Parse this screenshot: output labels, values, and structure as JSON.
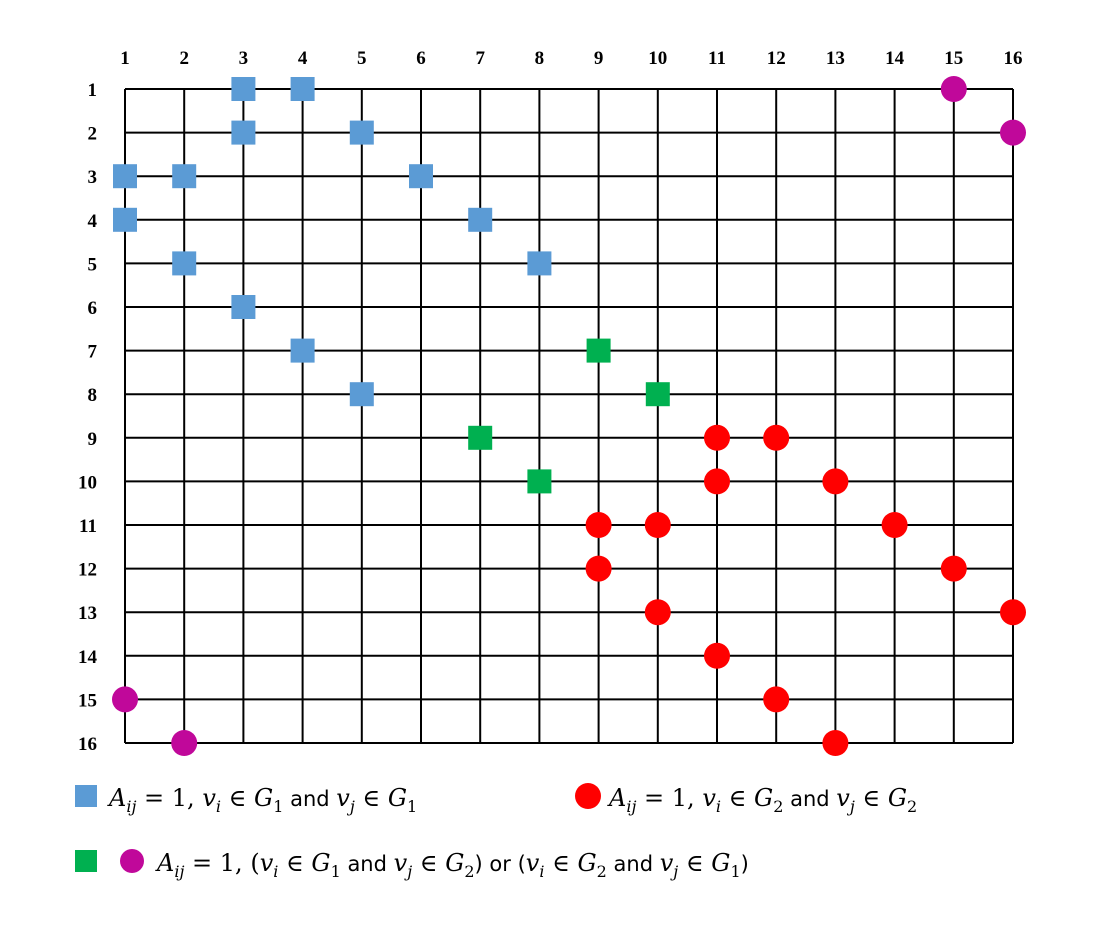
{
  "matrix": {
    "column_labels": [
      "1",
      "2",
      "3",
      "4",
      "5",
      "6",
      "7",
      "8",
      "9",
      "10",
      "11",
      "12",
      "13",
      "14",
      "15",
      "16"
    ],
    "row_labels": [
      "1",
      "2",
      "3",
      "4",
      "5",
      "6",
      "7",
      "8",
      "9",
      "10",
      "11",
      "12",
      "13",
      "14",
      "15",
      "16"
    ],
    "entries": {
      "blue_square": [
        [
          1,
          3
        ],
        [
          1,
          4
        ],
        [
          2,
          3
        ],
        [
          2,
          5
        ],
        [
          3,
          1
        ],
        [
          3,
          2
        ],
        [
          3,
          6
        ],
        [
          4,
          1
        ],
        [
          4,
          7
        ],
        [
          5,
          2
        ],
        [
          5,
          8
        ],
        [
          6,
          3
        ],
        [
          7,
          4
        ],
        [
          8,
          5
        ]
      ],
      "green_square": [
        [
          7,
          9
        ],
        [
          8,
          10
        ],
        [
          9,
          7
        ],
        [
          10,
          8
        ]
      ],
      "red_circle": [
        [
          9,
          11
        ],
        [
          9,
          12
        ],
        [
          10,
          11
        ],
        [
          10,
          13
        ],
        [
          11,
          9
        ],
        [
          11,
          10
        ],
        [
          11,
          14
        ],
        [
          12,
          9
        ],
        [
          12,
          15
        ],
        [
          13,
          10
        ],
        [
          13,
          16
        ],
        [
          14,
          11
        ],
        [
          15,
          12
        ],
        [
          16,
          13
        ]
      ],
      "magenta_circle": [
        [
          1,
          15
        ],
        [
          2,
          16
        ],
        [
          15,
          1
        ],
        [
          16,
          2
        ]
      ]
    }
  },
  "colors": {
    "blue_square": "#5b9bd5",
    "green_square": "#00b050",
    "red_circle": "#ff0000",
    "magenta_circle": "#c0089a",
    "grid": "#000000"
  },
  "legend": {
    "line1_left": {
      "A": "A",
      "A_sub": "ij",
      "eq": " = 1, ",
      "vi": "v",
      "vi_sub": "i",
      "in1": " ∈ ",
      "G1": "G",
      "G1_sub": "1",
      "and": " and ",
      "vj": "v",
      "vj_sub": "j",
      "in2": " ∈ ",
      "G2": "G",
      "G2_sub": "1"
    },
    "line1_right": {
      "A": "A",
      "A_sub": "ij",
      "eq": " = 1, ",
      "vi": "v",
      "vi_sub": "i",
      "in1": " ∈ ",
      "G1": "G",
      "G1_sub": "2",
      "and": " and ",
      "vj": "v",
      "vj_sub": "j",
      "in2": " ∈ ",
      "G2": "G",
      "G2_sub": "2"
    },
    "line2": {
      "A": "A",
      "A_sub": "ij",
      "eq": " = 1,  (",
      "vi1": "v",
      "vi1_sub": "i",
      "in1": " ∈ ",
      "G1a": "G",
      "G1a_sub": "1",
      "and1": " and ",
      "vj1": "v",
      "vj1_sub": "j",
      "in2": " ∈ ",
      "G2a": "G",
      "G2a_sub": "2",
      "or": ") or (",
      "vi2": "v",
      "vi2_sub": "i",
      "in3": " ∈ ",
      "G2b": "G",
      "G2b_sub": "2",
      "and2": " and ",
      "vj2": "v",
      "vj2_sub": "j",
      "in4": " ∈ ",
      "G1b": "G",
      "G1b_sub": "1",
      "close": ")"
    }
  }
}
